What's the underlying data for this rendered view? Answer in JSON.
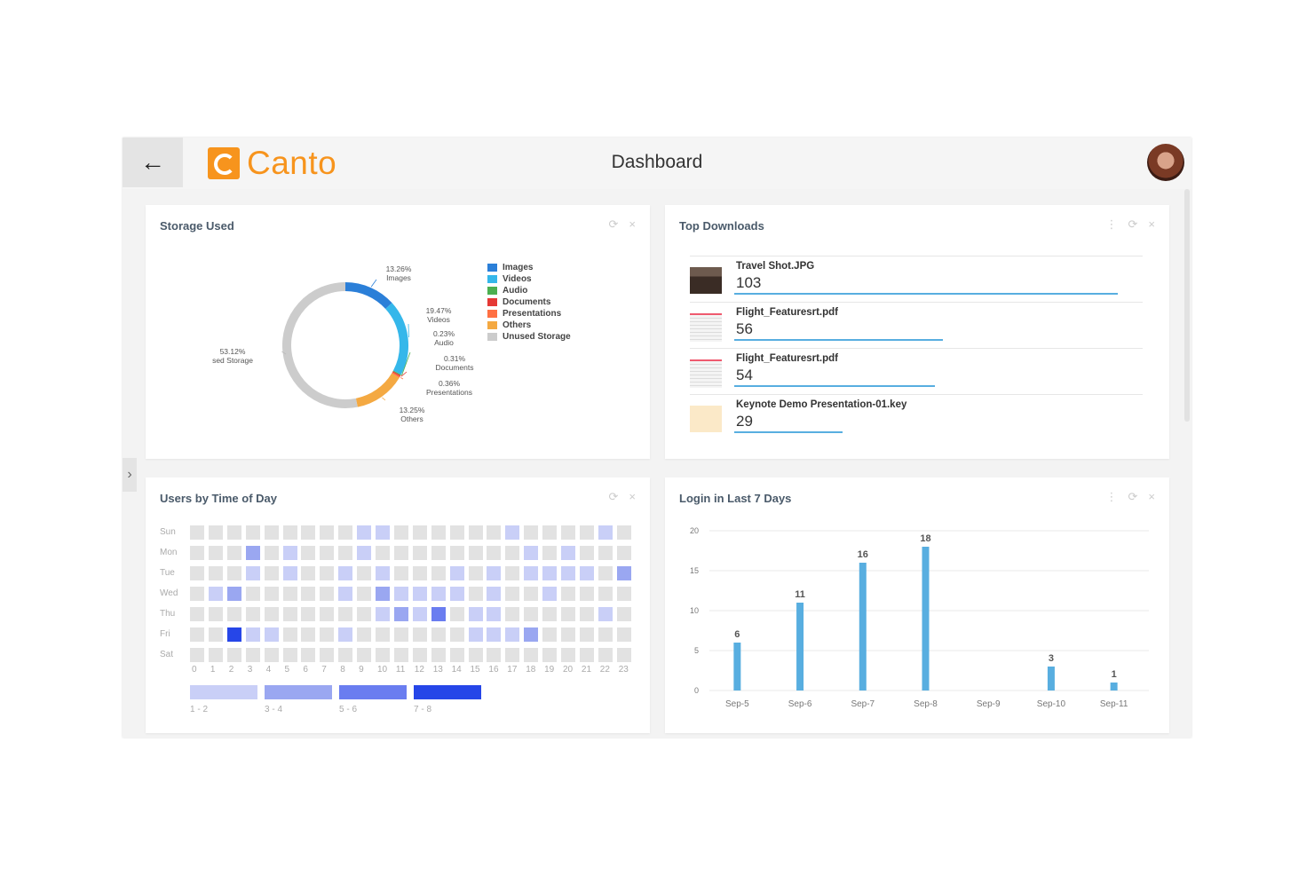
{
  "header": {
    "logo_text": "Canto",
    "title": "Dashboard",
    "back_icon": "←",
    "side_toggle_icon": "›"
  },
  "colors": {
    "brand": "#f7941d",
    "images": "#2b7fd8",
    "videos": "#35b7ea",
    "audio": "#4caf50",
    "documents": "#e53935",
    "presentations": "#ff7043",
    "others": "#f4a942",
    "unused": "#cccccc",
    "bar": "#58aee0",
    "heat_empty": "#e2e2e2",
    "heat_1": "#c9cff7",
    "heat_2": "#9aa7f1",
    "heat_3": "#6a7df0",
    "heat_4": "#2646e8"
  },
  "storage": {
    "title": "Storage Used",
    "actions": [
      "⟳",
      "×"
    ],
    "legend": [
      {
        "label": "Images",
        "color": "#2b7fd8"
      },
      {
        "label": "Videos",
        "color": "#35b7ea"
      },
      {
        "label": "Audio",
        "color": "#4caf50"
      },
      {
        "label": "Documents",
        "color": "#e53935"
      },
      {
        "label": "Presentations",
        "color": "#ff7043"
      },
      {
        "label": "Others",
        "color": "#f4a942"
      },
      {
        "label": "Unused Storage",
        "color": "#cccccc"
      }
    ],
    "slices": [
      {
        "name": "Images",
        "pct_label": "13.26%",
        "value": 13.26,
        "color": "#2b7fd8"
      },
      {
        "name": "Videos",
        "pct_label": "19.47%",
        "value": 19.47,
        "color": "#35b7ea"
      },
      {
        "name": "Audio",
        "pct_label": "0.23%",
        "value": 0.23,
        "color": "#4caf50"
      },
      {
        "name": "Documents",
        "pct_label": "0.31%",
        "value": 0.31,
        "color": "#e53935"
      },
      {
        "name": "Presentations",
        "pct_label": "0.36%",
        "value": 0.36,
        "color": "#ff7043"
      },
      {
        "name": "Others",
        "pct_label": "13.25%",
        "value": 13.25,
        "color": "#f4a942"
      },
      {
        "name": "sed Storage",
        "pct_label": "53.12%",
        "value": 53.12,
        "color": "#cccccc"
      }
    ]
  },
  "downloads": {
    "title": "Top Downloads",
    "actions": [
      "⋮",
      "⟳",
      "×"
    ],
    "max": 103,
    "items": [
      {
        "name": "Travel Shot.JPG",
        "count": 103,
        "thumb": "photo-thumbnail"
      },
      {
        "name": "Flight_Featuresrt.pdf",
        "count": 56,
        "thumb": "pdf-thumbnail"
      },
      {
        "name": "Flight_Featuresrt.pdf",
        "count": 54,
        "thumb": "pdf-thumbnail"
      },
      {
        "name": "Keynote Demo Presentation-01.key",
        "count": 29,
        "thumb": "keynote-thumbnail"
      }
    ]
  },
  "users_by_time": {
    "title": "Users by Time of Day",
    "actions": [
      "⟳",
      "×"
    ],
    "days": [
      "Sun",
      "Mon",
      "Tue",
      "Wed",
      "Thu",
      "Fri",
      "Sat"
    ],
    "hours": [
      "0",
      "1",
      "2",
      "3",
      "4",
      "5",
      "6",
      "7",
      "8",
      "9",
      "10",
      "11",
      "12",
      "13",
      "14",
      "15",
      "16",
      "17",
      "18",
      "19",
      "20",
      "21",
      "22",
      "23"
    ],
    "grid": [
      [
        0,
        0,
        0,
        0,
        0,
        0,
        0,
        0,
        0,
        1,
        1,
        0,
        0,
        0,
        0,
        0,
        0,
        1,
        0,
        0,
        0,
        0,
        1,
        0
      ],
      [
        0,
        0,
        0,
        2,
        0,
        1,
        0,
        0,
        0,
        1,
        0,
        0,
        0,
        0,
        0,
        0,
        0,
        0,
        1,
        0,
        1,
        0,
        0,
        0
      ],
      [
        0,
        0,
        0,
        1,
        0,
        1,
        0,
        0,
        1,
        0,
        1,
        0,
        0,
        0,
        1,
        0,
        1,
        0,
        1,
        1,
        1,
        1,
        0,
        2
      ],
      [
        0,
        1,
        2,
        0,
        0,
        0,
        0,
        0,
        1,
        0,
        2,
        1,
        1,
        1,
        1,
        0,
        1,
        0,
        0,
        1,
        0,
        0,
        0,
        0
      ],
      [
        0,
        0,
        0,
        0,
        0,
        0,
        0,
        0,
        0,
        0,
        1,
        2,
        1,
        3,
        0,
        1,
        1,
        0,
        0,
        0,
        0,
        0,
        1,
        0
      ],
      [
        0,
        0,
        4,
        1,
        1,
        0,
        0,
        0,
        1,
        0,
        0,
        0,
        0,
        0,
        0,
        1,
        1,
        1,
        2,
        0,
        0,
        0,
        0,
        0
      ],
      [
        0,
        0,
        0,
        0,
        0,
        0,
        0,
        0,
        0,
        0,
        0,
        0,
        0,
        0,
        0,
        0,
        0,
        0,
        0,
        0,
        0,
        0,
        0,
        0
      ]
    ],
    "legend": [
      {
        "label": "1 - 2",
        "color": "#c9cff7"
      },
      {
        "label": "3 - 4",
        "color": "#9aa7f1"
      },
      {
        "label": "5 - 6",
        "color": "#6a7df0"
      },
      {
        "label": "7 - 8",
        "color": "#2646e8"
      }
    ]
  },
  "logins": {
    "title": "Login in Last 7 Days",
    "actions": [
      "⋮",
      "⟳",
      "×"
    ]
  },
  "chart_data": {
    "type": "bar",
    "categories": [
      "Sep-5",
      "Sep-6",
      "Sep-7",
      "Sep-8",
      "Sep-9",
      "Sep-10",
      "Sep-11"
    ],
    "values": [
      6,
      11,
      16,
      18,
      0,
      3,
      1
    ],
    "value_labels": [
      "6",
      "11",
      "16",
      "18",
      "",
      "3",
      "1"
    ],
    "yticks": [
      0,
      5,
      10,
      15,
      20
    ],
    "ylim": [
      0,
      20
    ],
    "grid": true
  }
}
